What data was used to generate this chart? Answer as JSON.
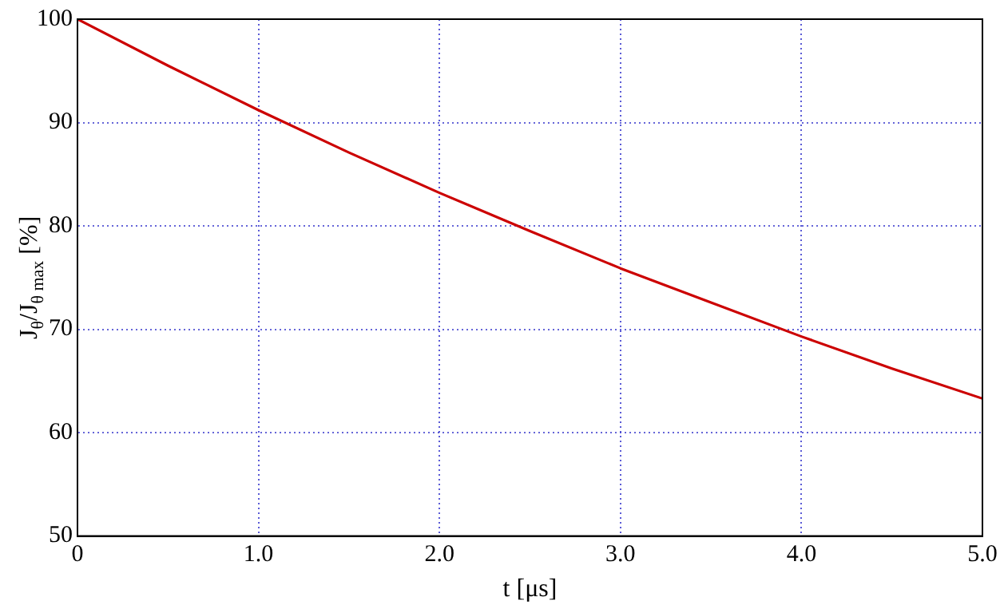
{
  "chart_data": {
    "type": "line",
    "xlabel": "t [μs]",
    "ylabel": "J$_{θ}$/J$_{θ max}$ [%]",
    "x": [
      0,
      0.5,
      1.0,
      1.5,
      2.0,
      2.5,
      3.0,
      3.5,
      4.0,
      4.5,
      5.0
    ],
    "series": [
      {
        "color": "#cc0000",
        "values": [
          100,
          95.5,
          91.2,
          87.1,
          83.2,
          79.5,
          75.9,
          72.6,
          69.3,
          66.2,
          63.3
        ]
      }
    ],
    "xlim": [
      0,
      5
    ],
    "xticks": [
      {
        "value": 0,
        "label": "0"
      },
      {
        "value": 1,
        "label": "1.0"
      },
      {
        "value": 2,
        "label": "2.0"
      },
      {
        "value": 3,
        "label": "3.0"
      },
      {
        "value": 4,
        "label": "4.0"
      },
      {
        "value": 5,
        "label": "5.0"
      }
    ],
    "ylim": [
      50,
      100
    ],
    "yticks": [
      50,
      60,
      70,
      80,
      90,
      100
    ],
    "grid": true,
    "legend": false,
    "marker": "none",
    "line_style": "solid"
  }
}
